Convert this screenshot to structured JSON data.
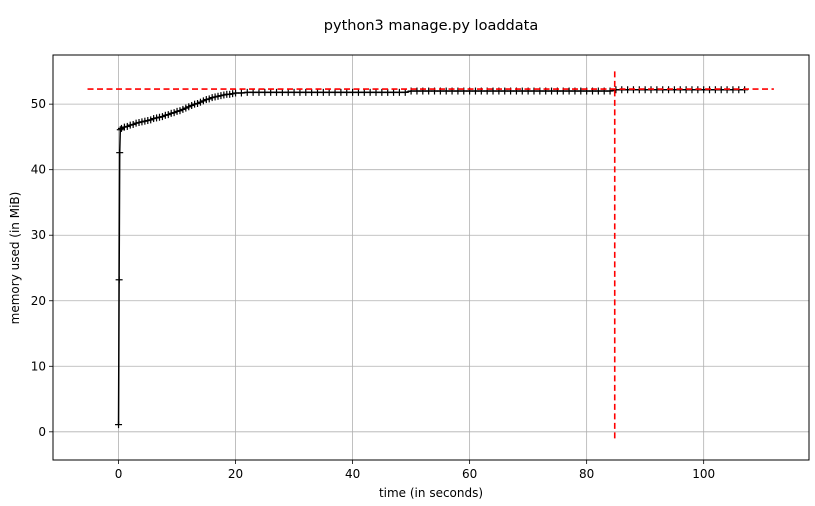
{
  "chart_data": {
    "type": "line",
    "title": "python3 manage.py loaddata",
    "xlabel": "time (in seconds)",
    "ylabel": "memory used (in MiB)",
    "xlim": [
      -11.2,
      118.0
    ],
    "ylim": [
      -4.3,
      57.5
    ],
    "xticks": [
      0,
      20,
      40,
      60,
      80,
      100
    ],
    "yticks": [
      0,
      10,
      20,
      30,
      40,
      50
    ],
    "grid": true,
    "line_color": "#000000",
    "marker": "+",
    "series": [
      {
        "x": [
          0,
          0.1,
          0.2,
          0.3,
          0.5,
          1,
          1.5,
          2,
          2.5,
          3,
          3.5,
          4,
          4.5,
          5,
          5.5,
          6,
          6.5,
          7,
          7.5,
          8,
          8.5,
          9,
          9.5,
          10,
          10.5,
          11,
          11.5,
          12,
          12.5,
          13,
          13.5,
          14,
          14.5,
          15,
          15.5,
          16,
          16.5,
          17,
          17.5,
          18,
          18.5,
          19,
          19.5,
          20,
          21,
          22,
          23,
          24,
          25,
          26,
          27,
          28,
          29,
          30,
          31,
          32,
          33,
          34,
          35,
          36,
          37,
          38,
          39,
          40,
          41,
          42,
          43,
          44,
          45,
          46,
          47,
          48,
          49,
          50,
          51,
          52,
          53,
          54,
          55,
          56,
          57,
          58,
          59,
          60,
          61,
          62,
          63,
          64,
          65,
          66,
          67,
          68,
          69,
          70,
          71,
          72,
          73,
          74,
          75,
          76,
          77,
          78,
          79,
          80,
          81,
          82,
          83,
          84,
          85,
          86,
          87,
          88,
          89,
          90,
          91,
          92,
          93,
          94,
          95,
          96,
          97,
          98,
          99,
          100,
          101,
          102,
          103,
          104,
          105,
          106,
          107
        ],
        "y": [
          1.1,
          23.2,
          42.6,
          46.1,
          46.3,
          46.5,
          46.6,
          46.8,
          46.9,
          47.1,
          47.2,
          47.3,
          47.4,
          47.5,
          47.6,
          47.8,
          47.9,
          48.0,
          48.1,
          48.3,
          48.4,
          48.6,
          48.7,
          48.9,
          49.0,
          49.2,
          49.4,
          49.6,
          49.8,
          50.0,
          50.1,
          50.3,
          50.5,
          50.7,
          50.8,
          51.0,
          51.1,
          51.2,
          51.3,
          51.4,
          51.5,
          51.5,
          51.6,
          51.7,
          51.7,
          51.8,
          51.8,
          51.8,
          51.8,
          51.8,
          51.8,
          51.8,
          51.8,
          51.8,
          51.8,
          51.8,
          51.8,
          51.8,
          51.8,
          51.8,
          51.8,
          51.8,
          51.8,
          51.8,
          51.8,
          51.8,
          51.8,
          51.8,
          51.8,
          51.8,
          51.8,
          51.8,
          51.8,
          52.0,
          52.0,
          52.0,
          52.0,
          52.0,
          52.0,
          52.0,
          52.0,
          52.0,
          52.0,
          52.0,
          52.0,
          52.0,
          52.0,
          52.0,
          52.0,
          52.0,
          52.0,
          52.0,
          52.0,
          52.0,
          52.0,
          52.0,
          52.0,
          52.0,
          52.0,
          52.0,
          52.0,
          52.0,
          52.0,
          52.0,
          52.0,
          52.0,
          52.0,
          52.0,
          52.2,
          52.2,
          52.2,
          52.2,
          52.2,
          52.2,
          52.2,
          52.2,
          52.2,
          52.2,
          52.2,
          52.2,
          52.2,
          52.2,
          52.2,
          52.2,
          52.2,
          52.2,
          52.2,
          52.2,
          52.2,
          52.2,
          52.2
        ]
      }
    ],
    "reference_lines": {
      "color": "#ff0000",
      "style": "dashed",
      "horizontal": {
        "y": 52.3,
        "x_from": -5.3,
        "x_to": 112.0
      },
      "vertical": {
        "x": 84.8,
        "y_from": -1.5,
        "y_to": 55.0
      }
    }
  }
}
